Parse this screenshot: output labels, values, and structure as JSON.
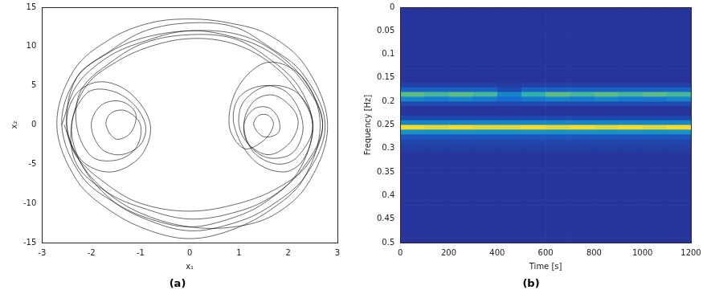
{
  "chart_data": [
    {
      "type": "line",
      "panel_label": "(a)",
      "xlabel": "x₁",
      "ylabel": "x₂",
      "color": "#000000",
      "grid": false,
      "xlim": [
        -3,
        3
      ],
      "xticks": [
        -3,
        -2,
        -1,
        0,
        1,
        2,
        3
      ],
      "ylim": [
        -15,
        15
      ],
      "yticks": [
        -15,
        -10,
        -5,
        0,
        5,
        10,
        15
      ],
      "x": [
        -2.6,
        -2.3,
        -1.7,
        -1,
        0,
        1,
        1.7,
        2.3,
        2.7,
        2.3,
        1.7,
        1,
        0,
        -1,
        -1.7,
        -2.3,
        -2.4,
        -2.1,
        -1.5,
        -0.8,
        0,
        0.8,
        1.5,
        2.1,
        2.5,
        2.2,
        1.8,
        1.3,
        1.1,
        1.3,
        1.7,
        2.1,
        2.2,
        2.0,
        1.6,
        1.2,
        1.0,
        1.1,
        1.6,
        2.2,
        2.5,
        2.2,
        1.5,
        0.8,
        0,
        -0.8,
        -1.5,
        -2.2,
        -2.6,
        -2.3,
        -1.6,
        -0.9,
        0,
        0.9,
        1.6,
        2.3,
        2.75,
        2.35,
        1.6,
        0.9,
        0,
        -0.9,
        -1.6,
        -2.2,
        -2.4,
        -2.1,
        -1.7,
        -1.2,
        -0.9,
        -1.0,
        -1.4,
        -1.8,
        -2.0,
        -1.8,
        -1.4,
        -1.1,
        -1.2,
        -1.5,
        -1.7,
        -1.6,
        -1.3,
        -1.0,
        -1.1,
        -1.5,
        -2.0,
        -2.3,
        -2.2,
        -1.6,
        -0.9,
        0,
        0.9,
        1.6,
        2.2,
        2.5,
        2.3,
        1.9,
        1.3,
        0.9,
        1.0,
        1.5,
        2.0,
        2.3,
        2.1,
        1.6,
        1.2,
        1.1,
        1.3,
        1.6,
        1.8,
        1.8,
        1.5,
        1.3,
        1.4,
        1.6,
        1.7,
        1.5,
        1.1,
        0.8,
        1.0,
        1.6,
        2.3,
        2.65,
        2.3,
        1.6,
        0.8,
        0,
        -0.8,
        -1.6,
        -2.3,
        -2.7,
        -2.35,
        -1.6,
        -0.8,
        0,
        0.8,
        1.6,
        2.35,
        2.8,
        2.4,
        1.7,
        0.9,
        0,
        -0.9,
        -1.6,
        -2.2,
        -2.5,
        -2.3,
        -1.8,
        -1.2,
        -0.8,
        -1.0,
        -1.6,
        -2.2,
        -2.5,
        -2.3,
        -1.7,
        -1.0,
        0,
        1.0,
        1.8,
        2.4,
        2.7,
        2.4,
        1.8,
        1.0,
        0,
        -1.0,
        -1.7,
        -2.3,
        -2.55
      ],
      "values": [
        0,
        5,
        8.5,
        10.5,
        12,
        11,
        9,
        5.5,
        0,
        -5.5,
        -9,
        -11,
        -12,
        -10.5,
        -8.5,
        -5,
        0,
        5,
        8,
        10,
        11,
        10.5,
        8.5,
        5,
        0,
        -4,
        -5,
        -3.5,
        0,
        3,
        3.8,
        2,
        0,
        -2.5,
        -3.8,
        -2.5,
        0,
        3,
        5,
        4,
        0,
        -6,
        -10,
        -12,
        -13,
        -12,
        -10,
        -6.5,
        0,
        6,
        9.5,
        12,
        13,
        12.5,
        10,
        6.5,
        0,
        -6.5,
        -10.5,
        -12.5,
        -13.5,
        -12,
        -9.5,
        -5,
        0,
        4,
        4.5,
        3,
        0,
        -2.5,
        -3.8,
        -3,
        0,
        2.5,
        3,
        1.5,
        -1,
        -1.8,
        0,
        1.5,
        1.8,
        0,
        -3,
        -4.5,
        -4,
        0,
        4.5,
        8,
        10.5,
        11.5,
        11,
        8.5,
        5,
        0,
        -4.5,
        -6,
        -4.5,
        0,
        3.5,
        5,
        4,
        0,
        -3.5,
        -4.2,
        -2.5,
        0,
        2,
        2.2,
        0.8,
        -1,
        -1.5,
        0,
        1.2,
        1.2,
        0,
        -2,
        -3,
        0,
        5,
        8,
        6,
        0,
        -7,
        -11,
        -13.5,
        -14.5,
        -13.5,
        -11,
        -7,
        0,
        7,
        11,
        13,
        13.5,
        13,
        11.5,
        7.5,
        0,
        -7.5,
        -11.5,
        -13,
        -13,
        -11.5,
        -9,
        -5,
        0,
        4,
        5.5,
        4,
        0,
        -4,
        -6,
        -4.5,
        0,
        6,
        9,
        11,
        12,
        11.5,
        9,
        5,
        0,
        -5,
        -8,
        -10,
        -11,
        -10,
        -7.5,
        -4,
        0
      ]
    },
    {
      "type": "heatmap",
      "panel_label": "(b)",
      "xlabel": "Time [s]",
      "ylabel": "Frequency [Hz]",
      "grid": false,
      "xlim": [
        0,
        1200
      ],
      "xticks": [
        0,
        200,
        400,
        600,
        800,
        1000,
        1200
      ],
      "ylim": [
        0,
        0.5
      ],
      "yticks": [
        0,
        0.05,
        0.1,
        0.15,
        0.2,
        0.25,
        0.3,
        0.35,
        0.4,
        0.45,
        0.5
      ],
      "time_bins": [
        0,
        100,
        200,
        300,
        400,
        500,
        600,
        700,
        800,
        900,
        1000,
        1100,
        1200
      ],
      "frequency_bins": [
        0,
        0.01,
        0.02,
        0.03,
        0.04,
        0.05,
        0.06,
        0.07,
        0.08,
        0.09,
        0.1,
        0.11,
        0.12,
        0.13,
        0.14,
        0.15,
        0.16,
        0.17,
        0.18,
        0.19,
        0.2,
        0.21,
        0.22,
        0.23,
        0.24,
        0.25,
        0.26,
        0.27,
        0.28,
        0.29,
        0.3,
        0.31,
        0.32,
        0.33,
        0.34,
        0.35,
        0.36,
        0.37,
        0.38,
        0.39,
        0.4,
        0.41,
        0.42,
        0.43,
        0.44,
        0.45,
        0.46,
        0.47,
        0.48,
        0.49,
        0.5
      ],
      "cells": [
        [
          0,
          0,
          0,
          0,
          0,
          0,
          0,
          0,
          0,
          0,
          0,
          0
        ],
        [
          0,
          0,
          0,
          0,
          0,
          0,
          0,
          0,
          0,
          0,
          0,
          0
        ],
        [
          0,
          0,
          0,
          0,
          0,
          0,
          0,
          0,
          0,
          0,
          0,
          0
        ],
        [
          0,
          0,
          0,
          0,
          0,
          0,
          0,
          0,
          0,
          0,
          0,
          0
        ],
        [
          0,
          0,
          0,
          0,
          0,
          0,
          0,
          0,
          0,
          0,
          0,
          0
        ],
        [
          0,
          0,
          0,
          0,
          0,
          0,
          0,
          0,
          0,
          0,
          0,
          0
        ],
        [
          0,
          0,
          0,
          0,
          0,
          0,
          0,
          0,
          0,
          0,
          0,
          0
        ],
        [
          0,
          0,
          0,
          0,
          0,
          0,
          0,
          0,
          0,
          0,
          0,
          0
        ],
        [
          0,
          0,
          0,
          0,
          0,
          0,
          0,
          0,
          0,
          0,
          0,
          0
        ],
        [
          0,
          0,
          0,
          0,
          0,
          0,
          0,
          0,
          0,
          0,
          0,
          0
        ],
        [
          0,
          0,
          0,
          0,
          0,
          0,
          0,
          0,
          0,
          0,
          0,
          0
        ],
        [
          0,
          0,
          0,
          0,
          0,
          0,
          0,
          0,
          0,
          0,
          0,
          0
        ],
        [
          0,
          0,
          0,
          0,
          0,
          0,
          0,
          0,
          0,
          0,
          0,
          0
        ],
        [
          0,
          0,
          0,
          0,
          0,
          0,
          0,
          0,
          0,
          0,
          0,
          0
        ],
        [
          0,
          0,
          0,
          0,
          0,
          0,
          0,
          0,
          0,
          0,
          0,
          0
        ],
        [
          0,
          0,
          0,
          0,
          0,
          0,
          0,
          0,
          0,
          0,
          0,
          0
        ],
        [
          0.05,
          0.05,
          0.05,
          0.05,
          0.03,
          0.05,
          0.05,
          0.05,
          0.05,
          0.05,
          0.05,
          0.05
        ],
        [
          0.2,
          0.2,
          0.2,
          0.2,
          0.1,
          0.2,
          0.2,
          0.2,
          0.2,
          0.2,
          0.2,
          0.2
        ],
        [
          0.65,
          0.6,
          0.65,
          0.6,
          0.35,
          0.55,
          0.65,
          0.6,
          0.65,
          0.6,
          0.65,
          0.6
        ],
        [
          0.35,
          0.3,
          0.35,
          0.3,
          0.25,
          0.3,
          0.35,
          0.3,
          0.35,
          0.3,
          0.3,
          0.35
        ],
        [
          0.1,
          0.1,
          0.1,
          0.1,
          0.08,
          0.1,
          0.1,
          0.1,
          0.1,
          0.1,
          0.1,
          0.1
        ],
        [
          0,
          0,
          0,
          0,
          0,
          0,
          0,
          0,
          0,
          0,
          0,
          0
        ],
        [
          0,
          0,
          0,
          0,
          0,
          0,
          0,
          0,
          0,
          0,
          0,
          0
        ],
        [
          0.08,
          0.08,
          0.08,
          0.08,
          0.08,
          0.08,
          0.08,
          0.08,
          0.08,
          0.08,
          0.08,
          0.08
        ],
        [
          0.35,
          0.35,
          0.35,
          0.35,
          0.35,
          0.35,
          0.35,
          0.35,
          0.35,
          0.35,
          0.35,
          0.35
        ],
        [
          1,
          0.95,
          1,
          0.95,
          0.95,
          1,
          0.95,
          1,
          0.95,
          1,
          0.95,
          1
        ],
        [
          0.4,
          0.4,
          0.4,
          0.4,
          0.4,
          0.4,
          0.4,
          0.4,
          0.4,
          0.4,
          0.4,
          0.4
        ],
        [
          0.15,
          0.15,
          0.15,
          0.15,
          0.15,
          0.15,
          0.15,
          0.15,
          0.15,
          0.15,
          0.15,
          0.15
        ],
        [
          0.08,
          0.08,
          0.08,
          0.08,
          0.08,
          0.08,
          0.08,
          0.08,
          0.08,
          0.08,
          0.08,
          0.08
        ],
        [
          0.05,
          0.05,
          0.05,
          0.05,
          0.05,
          0.05,
          0.05,
          0.05,
          0.05,
          0.05,
          0.05,
          0.05
        ],
        [
          0.03,
          0.03,
          0.03,
          0.03,
          0.03,
          0.03,
          0.03,
          0.03,
          0.03,
          0.03,
          0.03,
          0.03
        ],
        [
          0,
          0,
          0,
          0,
          0,
          0,
          0,
          0,
          0,
          0,
          0,
          0
        ],
        [
          0,
          0,
          0,
          0,
          0,
          0,
          0,
          0,
          0,
          0,
          0,
          0
        ],
        [
          0,
          0,
          0,
          0,
          0,
          0,
          0,
          0,
          0,
          0,
          0,
          0
        ],
        [
          0,
          0,
          0,
          0,
          0,
          0,
          0,
          0,
          0,
          0,
          0,
          0
        ],
        [
          0,
          0,
          0,
          0,
          0,
          0,
          0,
          0,
          0,
          0,
          0,
          0
        ],
        [
          0,
          0,
          0,
          0,
          0,
          0,
          0,
          0,
          0,
          0,
          0,
          0
        ],
        [
          0,
          0,
          0,
          0,
          0,
          0,
          0,
          0,
          0,
          0,
          0,
          0
        ],
        [
          0,
          0,
          0,
          0,
          0,
          0,
          0,
          0,
          0,
          0,
          0,
          0
        ],
        [
          0,
          0,
          0,
          0,
          0,
          0,
          0,
          0,
          0,
          0,
          0,
          0
        ],
        [
          0,
          0,
          0,
          0,
          0,
          0,
          0,
          0,
          0,
          0,
          0,
          0
        ],
        [
          0,
          0,
          0,
          0,
          0,
          0,
          0,
          0,
          0,
          0,
          0,
          0
        ],
        [
          0,
          0,
          0,
          0,
          0,
          0,
          0,
          0,
          0,
          0,
          0,
          0
        ],
        [
          0,
          0,
          0,
          0,
          0,
          0,
          0,
          0,
          0,
          0,
          0,
          0
        ],
        [
          0,
          0,
          0,
          0,
          0,
          0,
          0,
          0,
          0,
          0,
          0,
          0
        ],
        [
          0,
          0,
          0,
          0,
          0,
          0,
          0,
          0,
          0,
          0,
          0,
          0
        ],
        [
          0,
          0,
          0,
          0,
          0,
          0,
          0,
          0,
          0,
          0,
          0,
          0
        ],
        [
          0,
          0,
          0,
          0,
          0,
          0,
          0,
          0,
          0,
          0,
          0,
          0
        ],
        [
          0,
          0,
          0,
          0,
          0,
          0,
          0,
          0,
          0,
          0,
          0,
          0
        ],
        [
          0,
          0,
          0,
          0,
          0,
          0,
          0,
          0,
          0,
          0,
          0,
          0
        ]
      ]
    }
  ]
}
